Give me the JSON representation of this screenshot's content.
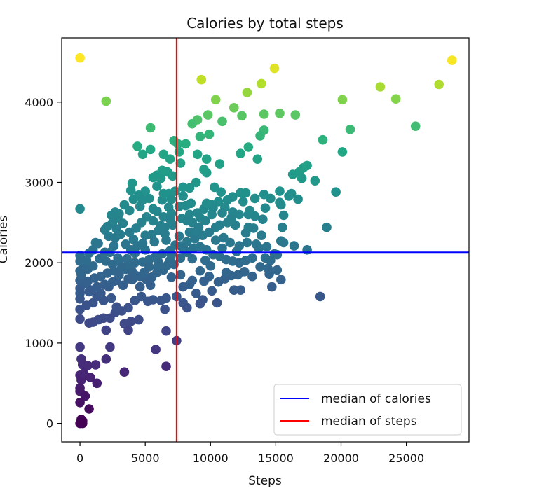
{
  "chart_data": {
    "type": "scatter",
    "title": "Calories by total steps",
    "xlabel": "Steps",
    "ylabel": "Calories",
    "xlim": [
      -1400,
      29800
    ],
    "ylim": [
      -230,
      4800
    ],
    "xticks": [
      0,
      5000,
      10000,
      15000,
      20000,
      25000
    ],
    "yticks": [
      0,
      1000,
      2000,
      3000,
      4000
    ],
    "grid": false,
    "legend_position": "bottom-right",
    "colormap": "viridis",
    "color_by": "Calories",
    "reference_lines": [
      {
        "label": "median of calories",
        "orientation": "horizontal",
        "value": 2130,
        "color": "#0000ff"
      },
      {
        "label": "median of steps",
        "orientation": "vertical",
        "value": 7400,
        "color": "#ff0000"
      }
    ],
    "points": [
      [
        0,
        4550
      ],
      [
        2000,
        4010
      ],
      [
        9300,
        4280
      ],
      [
        14900,
        4420
      ],
      [
        28500,
        4520
      ],
      [
        27500,
        4220
      ],
      [
        24200,
        4040
      ],
      [
        23000,
        4190
      ],
      [
        20100,
        4030
      ],
      [
        25700,
        3700
      ],
      [
        20700,
        3660
      ],
      [
        18600,
        3530
      ],
      [
        20100,
        3380
      ],
      [
        16500,
        3840
      ],
      [
        15300,
        3860
      ],
      [
        14100,
        3850
      ],
      [
        12800,
        4120
      ],
      [
        11800,
        3930
      ],
      [
        10400,
        4030
      ],
      [
        9800,
        3840
      ],
      [
        9000,
        3780
      ],
      [
        8600,
        3730
      ],
      [
        10900,
        3760
      ],
      [
        12400,
        3830
      ],
      [
        13900,
        4230
      ],
      [
        14100,
        3650
      ],
      [
        13800,
        3580
      ],
      [
        9900,
        3600
      ],
      [
        9200,
        3570
      ],
      [
        5400,
        3680
      ],
      [
        7200,
        3520
      ],
      [
        7500,
        3480
      ],
      [
        4400,
        3450
      ],
      [
        5400,
        3410
      ],
      [
        4800,
        3350
      ],
      [
        6400,
        3350
      ],
      [
        6900,
        3290
      ],
      [
        7600,
        3380
      ],
      [
        9000,
        3350
      ],
      [
        9700,
        3290
      ],
      [
        10700,
        3230
      ],
      [
        12900,
        3440
      ],
      [
        12300,
        3360
      ],
      [
        13600,
        3290
      ],
      [
        16300,
        3100
      ],
      [
        16800,
        3130
      ],
      [
        17100,
        3180
      ],
      [
        17400,
        3210
      ],
      [
        17000,
        3050
      ],
      [
        18000,
        3020
      ],
      [
        19600,
        2880
      ],
      [
        18900,
        2440
      ],
      [
        18400,
        1580
      ],
      [
        16200,
        2860
      ],
      [
        15300,
        2890
      ],
      [
        15400,
        2720
      ],
      [
        15600,
        2590
      ],
      [
        15500,
        2440
      ],
      [
        15400,
        2270
      ],
      [
        14600,
        2800
      ],
      [
        14100,
        2850
      ],
      [
        13400,
        2800
      ],
      [
        12700,
        2870
      ],
      [
        12300,
        2870
      ],
      [
        11700,
        2820
      ],
      [
        11300,
        2780
      ],
      [
        10800,
        2880
      ],
      [
        10300,
        2940
      ],
      [
        9700,
        3120
      ],
      [
        9500,
        3160
      ],
      [
        8900,
        3000
      ],
      [
        8400,
        2930
      ],
      [
        7900,
        2940
      ],
      [
        7100,
        3080
      ],
      [
        6700,
        3130
      ],
      [
        6300,
        3150
      ],
      [
        5900,
        3090
      ],
      [
        5600,
        3060
      ],
      [
        5000,
        2890
      ],
      [
        4500,
        2840
      ],
      [
        4100,
        2790
      ],
      [
        3900,
        2900
      ],
      [
        4000,
        2990
      ],
      [
        3400,
        2720
      ],
      [
        3000,
        2610
      ],
      [
        2700,
        2630
      ],
      [
        2400,
        2590
      ],
      [
        2900,
        2560
      ],
      [
        2500,
        2500
      ],
      [
        1900,
        2410
      ],
      [
        2200,
        2330
      ],
      [
        1900,
        2130
      ],
      [
        1200,
        2250
      ],
      [
        700,
        2120
      ],
      [
        0,
        2670
      ],
      [
        0,
        2090
      ],
      [
        300,
        1950
      ],
      [
        600,
        1920
      ],
      [
        1000,
        1960
      ],
      [
        1500,
        2050
      ],
      [
        2000,
        2020
      ],
      [
        2500,
        1980
      ],
      [
        3000,
        2020
      ],
      [
        3500,
        1920
      ],
      [
        4000,
        1890
      ],
      [
        4600,
        1830
      ],
      [
        5100,
        1790
      ],
      [
        5500,
        1820
      ],
      [
        5900,
        1880
      ],
      [
        6400,
        1910
      ],
      [
        6900,
        2030
      ],
      [
        7200,
        1980
      ],
      [
        7700,
        2060
      ],
      [
        8200,
        2130
      ],
      [
        8700,
        2180
      ],
      [
        9200,
        2200
      ],
      [
        9700,
        2160
      ],
      [
        10200,
        2100
      ],
      [
        10700,
        2080
      ],
      [
        11200,
        2040
      ],
      [
        11700,
        2020
      ],
      [
        12200,
        2000
      ],
      [
        12700,
        2030
      ],
      [
        13200,
        2060
      ],
      [
        13700,
        2180
      ],
      [
        14200,
        2060
      ],
      [
        14400,
        1930
      ],
      [
        14900,
        2110
      ],
      [
        15400,
        1790
      ],
      [
        14700,
        1700
      ],
      [
        13200,
        1830
      ],
      [
        12600,
        1890
      ],
      [
        12100,
        1850
      ],
      [
        11600,
        1840
      ],
      [
        11100,
        1800
      ],
      [
        10600,
        1760
      ],
      [
        10100,
        1650
      ],
      [
        9400,
        1540
      ],
      [
        8900,
        1620
      ],
      [
        8400,
        1730
      ],
      [
        7900,
        1700
      ],
      [
        7400,
        1580
      ],
      [
        7000,
        1820
      ],
      [
        6600,
        1560
      ],
      [
        6200,
        1530
      ],
      [
        5600,
        1540
      ],
      [
        5200,
        1520
      ],
      [
        4700,
        1580
      ],
      [
        4200,
        1530
      ],
      [
        3700,
        1440
      ],
      [
        3200,
        1400
      ],
      [
        2700,
        1380
      ],
      [
        2300,
        1310
      ],
      [
        1800,
        1310
      ],
      [
        1400,
        1290
      ],
      [
        1000,
        1260
      ],
      [
        700,
        1250
      ],
      [
        0,
        1300
      ],
      [
        0,
        1420
      ],
      [
        0,
        1550
      ],
      [
        0,
        1680
      ],
      [
        0,
        1780
      ],
      [
        100,
        1850
      ],
      [
        500,
        1740
      ],
      [
        900,
        1660
      ],
      [
        1300,
        1580
      ],
      [
        1800,
        1530
      ],
      [
        2400,
        1560
      ],
      [
        2800,
        1450
      ],
      [
        3400,
        1240
      ],
      [
        3900,
        1270
      ],
      [
        4500,
        1290
      ],
      [
        3700,
        1160
      ],
      [
        2000,
        1160
      ],
      [
        6600,
        1150
      ],
      [
        7400,
        1030
      ],
      [
        9200,
        1490
      ],
      [
        8200,
        1440
      ],
      [
        10500,
        1500
      ],
      [
        11800,
        1660
      ],
      [
        12300,
        1660
      ],
      [
        15100,
        1910
      ],
      [
        6500,
        1420
      ],
      [
        7900,
        1500
      ],
      [
        0,
        950
      ],
      [
        100,
        800
      ],
      [
        200,
        730
      ],
      [
        600,
        720
      ],
      [
        1200,
        730
      ],
      [
        2000,
        800
      ],
      [
        2300,
        950
      ],
      [
        3400,
        640
      ],
      [
        5800,
        920
      ],
      [
        6600,
        710
      ],
      [
        0,
        600
      ],
      [
        100,
        540
      ],
      [
        300,
        620
      ],
      [
        800,
        570
      ],
      [
        1300,
        500
      ],
      [
        0,
        440
      ],
      [
        0,
        400
      ],
      [
        400,
        340
      ],
      [
        0,
        260
      ],
      [
        700,
        180
      ],
      [
        100,
        50
      ],
      [
        200,
        30
      ],
      [
        0,
        0
      ],
      [
        100,
        20
      ],
      [
        200,
        0
      ],
      [
        1000,
        2160
      ],
      [
        1400,
        2240
      ],
      [
        3500,
        2230
      ],
      [
        4100,
        2290
      ],
      [
        5000,
        2340
      ],
      [
        5500,
        2350
      ],
      [
        6000,
        2400
      ],
      [
        6500,
        2440
      ],
      [
        7100,
        2470
      ],
      [
        7800,
        2550
      ],
      [
        8400,
        2600
      ],
      [
        9000,
        2620
      ],
      [
        9500,
        2670
      ],
      [
        10100,
        2720
      ],
      [
        10600,
        2760
      ],
      [
        11100,
        2690
      ],
      [
        11700,
        2630
      ],
      [
        12200,
        2600
      ],
      [
        12900,
        2600
      ],
      [
        13400,
        2580
      ],
      [
        14000,
        2540
      ],
      [
        10400,
        2440
      ],
      [
        9900,
        2380
      ],
      [
        9400,
        2340
      ],
      [
        8800,
        2300
      ],
      [
        8200,
        2260
      ],
      [
        7700,
        2210
      ],
      [
        6900,
        2150
      ],
      [
        6300,
        2110
      ],
      [
        5800,
        2080
      ],
      [
        5300,
        2040
      ],
      [
        4800,
        2010
      ],
      [
        4200,
        2000
      ],
      [
        3700,
        1980
      ],
      [
        3200,
        1940
      ],
      [
        2600,
        1900
      ],
      [
        2100,
        1870
      ],
      [
        1600,
        1830
      ],
      [
        1100,
        1810
      ],
      [
        600,
        1770
      ],
      [
        5600,
        2670
      ],
      [
        5100,
        2570
      ],
      [
        4700,
        2500
      ],
      [
        4300,
        2430
      ],
      [
        3800,
        2380
      ],
      [
        3300,
        2490
      ],
      [
        2800,
        2420
      ],
      [
        6300,
        2780
      ],
      [
        6800,
        2860
      ],
      [
        7300,
        2890
      ],
      [
        8100,
        2710
      ],
      [
        8600,
        2500
      ],
      [
        9100,
        2440
      ],
      [
        10900,
        2620
      ],
      [
        11600,
        2560
      ],
      [
        12800,
        2250
      ],
      [
        13500,
        2230
      ],
      [
        14300,
        2200
      ],
      [
        15100,
        2100
      ],
      [
        16400,
        2210
      ],
      [
        17400,
        2160
      ],
      [
        9600,
        2030
      ],
      [
        10900,
        2180
      ],
      [
        11500,
        2250
      ],
      [
        12200,
        2210
      ],
      [
        8600,
        2050
      ],
      [
        9200,
        1900
      ],
      [
        10000,
        1960
      ],
      [
        11200,
        1880
      ],
      [
        9900,
        1830
      ],
      [
        9500,
        1770
      ],
      [
        8600,
        1780
      ],
      [
        7700,
        1850
      ],
      [
        6700,
        1970
      ],
      [
        5400,
        1720
      ],
      [
        4600,
        1700
      ],
      [
        4000,
        1790
      ],
      [
        3300,
        1720
      ],
      [
        2800,
        1780
      ],
      [
        2200,
        1700
      ],
      [
        1600,
        1620
      ],
      [
        1000,
        1500
      ],
      [
        500,
        1470
      ],
      [
        0,
        1900
      ],
      [
        0,
        2020
      ],
      [
        500,
        2030
      ],
      [
        4800,
        2240
      ],
      [
        6800,
        2690
      ],
      [
        7900,
        2830
      ],
      [
        8500,
        2740
      ],
      [
        10200,
        2680
      ],
      [
        11900,
        2470
      ],
      [
        12700,
        2370
      ],
      [
        13300,
        2430
      ],
      [
        13900,
        2340
      ],
      [
        14600,
        2030
      ],
      [
        8100,
        3480
      ],
      [
        7700,
        3240
      ],
      [
        6200,
        3050
      ],
      [
        5300,
        2800
      ],
      [
        4800,
        2780
      ],
      [
        5900,
        2640
      ],
      [
        6400,
        2570
      ],
      [
        7000,
        2610
      ],
      [
        7300,
        2220
      ],
      [
        5000,
        2160
      ],
      [
        4200,
        2120
      ],
      [
        3600,
        2050
      ],
      [
        2900,
        2060
      ],
      [
        2300,
        2130
      ],
      [
        6000,
        2010
      ],
      [
        7000,
        2100
      ],
      [
        8000,
        2160
      ],
      [
        6000,
        1960
      ],
      [
        5300,
        1950
      ],
      [
        4900,
        1880
      ],
      [
        4300,
        1840
      ],
      [
        3700,
        1800
      ],
      [
        3000,
        1850
      ],
      [
        2500,
        1760
      ],
      [
        1900,
        1730
      ],
      [
        1300,
        1700
      ],
      [
        700,
        1640
      ],
      [
        0,
        1620
      ],
      [
        10400,
        2280
      ],
      [
        11000,
        2310
      ],
      [
        12000,
        2140
      ],
      [
        13800,
        1950
      ],
      [
        14500,
        1860
      ],
      [
        15600,
        2250
      ],
      [
        12900,
        2440
      ],
      [
        11600,
        2540
      ],
      [
        9700,
        2740
      ],
      [
        9200,
        2560
      ],
      [
        8400,
        2380
      ],
      [
        7600,
        2330
      ],
      [
        6600,
        2280
      ],
      [
        5700,
        2260
      ],
      [
        4400,
        2210
      ],
      [
        3900,
        2160
      ],
      [
        2700,
        2310
      ],
      [
        3100,
        2350
      ],
      [
        2600,
        2210
      ],
      [
        6200,
        2460
      ],
      [
        5600,
        2520
      ],
      [
        6900,
        2540
      ],
      [
        6500,
        2360
      ],
      [
        2100,
        2450
      ],
      [
        3800,
        2650
      ],
      [
        4600,
        2700
      ],
      [
        5900,
        2950
      ],
      [
        6400,
        2860
      ],
      [
        7000,
        2790
      ],
      [
        7600,
        2700
      ],
      [
        8200,
        2520
      ],
      [
        8900,
        2390
      ],
      [
        9600,
        2520
      ],
      [
        10100,
        2600
      ],
      [
        10700,
        2470
      ],
      [
        11300,
        2500
      ],
      [
        12500,
        2760
      ],
      [
        13000,
        2650
      ],
      [
        14200,
        2680
      ],
      [
        15300,
        2750
      ],
      [
        16000,
        2830
      ],
      [
        16700,
        2790
      ]
    ],
    "legend": [
      "median of calories",
      "median of steps"
    ]
  }
}
